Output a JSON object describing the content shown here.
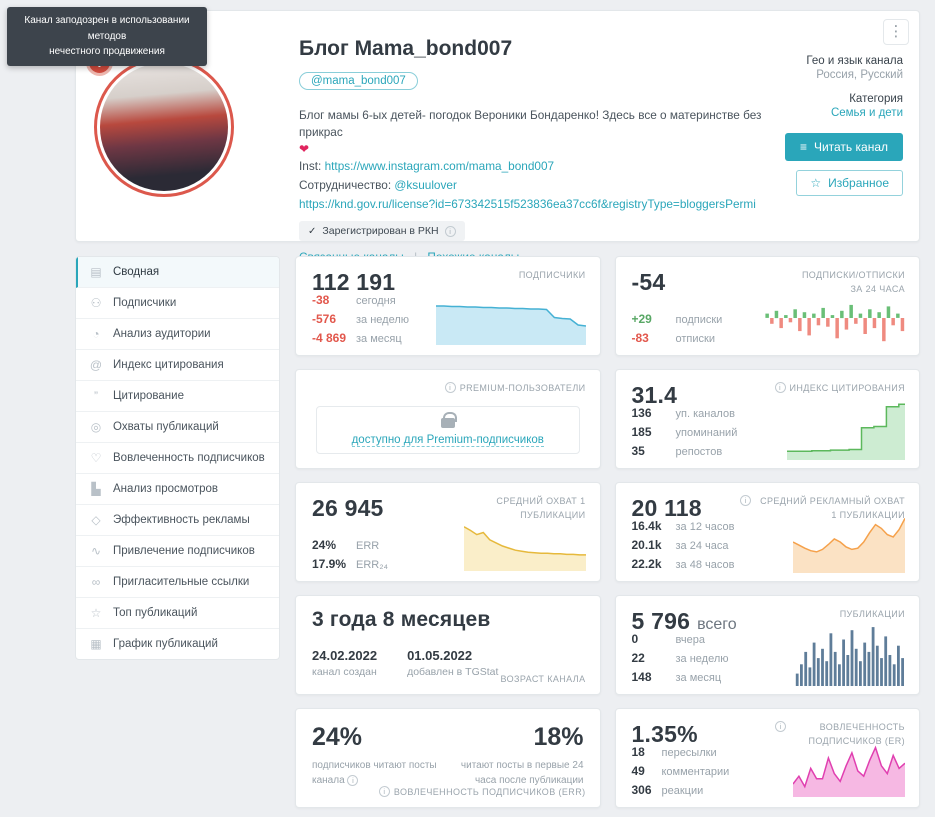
{
  "tooltip": {
    "line1": "Канал заподозрен в использовании методов",
    "line2": "нечестного продвижения"
  },
  "icons": {
    "menu": "⋮",
    "check": "✓",
    "info": "i",
    "star": "☆",
    "read": "≡",
    "warning": "!"
  },
  "header": {
    "title": "Блог Mama_bond007",
    "username": "@mama_bond007",
    "description": "Блог мамы 6-ых детей- погодок Вероники Бондаренко! Здесь все о материнстве без прикрас",
    "heart": "❤",
    "inst_label": "Inst:",
    "inst_url": "https://www.instagram.com/mama_bond007",
    "collab_label": "Сотрудничество:",
    "collab_handle": "@ksuulover",
    "license_url": "https://knd.gov.ru/license?id=673342515f523836ea37cc6f&registryType=bloggersPermi",
    "rkn_label": "Зарегистрирован в РКН",
    "related_link": "Связанные каналы",
    "links_divider": "|",
    "similar_link": "Похожие каналы",
    "geo_label": "Гео и язык канала",
    "geo_value": "Россия, Русский",
    "category_label": "Категория",
    "category_value": "Семья и дети",
    "read_button": "Читать канал",
    "favorite_button": "Избранное"
  },
  "sidebar": {
    "items": [
      {
        "icon": "▤",
        "label": "Сводная",
        "active": true
      },
      {
        "icon": "⚇",
        "label": "Подписчики"
      },
      {
        "icon": "◔",
        "label": "Анализ аудитории"
      },
      {
        "icon": "@",
        "label": "Индекс цитирования"
      },
      {
        "icon": "”",
        "label": "Цитирование"
      },
      {
        "icon": "◎",
        "label": "Охваты публикаций"
      },
      {
        "icon": "♡",
        "label": "Вовлеченность подписчиков"
      },
      {
        "icon": "▙",
        "label": "Анализ просмотров"
      },
      {
        "icon": "◇",
        "label": "Эффективность рекламы"
      },
      {
        "icon": "∿",
        "label": "Привлечение подписчиков"
      },
      {
        "icon": "∞",
        "label": "Пригласительные ссылки"
      },
      {
        "icon": "☆",
        "label": "Топ публикаций"
      },
      {
        "icon": "▦",
        "label": "График публикаций"
      }
    ]
  },
  "cards": {
    "subscribers": {
      "value": "112 191",
      "label": "ПОДПИСЧИКИ",
      "rows": [
        {
          "v": "-38",
          "l": "сегодня"
        },
        {
          "v": "-576",
          "l": "за неделю"
        },
        {
          "v": "-4 869",
          "l": "за месяц"
        }
      ]
    },
    "subs24": {
      "value": "-54",
      "label": "ПОДПИСКИ/ОТПИСКИ ЗА 24 ЧАСА",
      "rows": [
        {
          "v": "+29",
          "l": "подписки"
        },
        {
          "v": "-83",
          "l": "отписки"
        }
      ]
    },
    "premium": {
      "label": "PREMIUM-ПОЛЬЗОВАТЕЛИ",
      "link": "доступно для Premium-подписчиков"
    },
    "citation": {
      "value": "31.4",
      "label": "ИНДЕКС ЦИТИРОВАНИЯ",
      "rows": [
        {
          "v": "136",
          "l": "уп. каналов"
        },
        {
          "v": "185",
          "l": "упоминаний"
        },
        {
          "v": "35",
          "l": "репостов"
        }
      ]
    },
    "reach": {
      "value": "26 945",
      "label": "СРЕДНИЙ ОХВАТ 1 ПУБЛИКАЦИИ",
      "rows": [
        {
          "v": "24%",
          "l": "ERR"
        },
        {
          "v": "17.9%",
          "l": "ERR₂₄"
        }
      ]
    },
    "adreach": {
      "value": "20 118",
      "label": "СРЕДНИЙ РЕКЛАМНЫЙ ОХВАТ 1 ПУБЛИКАЦИИ",
      "rows": [
        {
          "v": "16.4k",
          "l": "за 12 часов"
        },
        {
          "v": "20.1k",
          "l": "за 24 часа"
        },
        {
          "v": "22.2k",
          "l": "за 48 часов"
        }
      ]
    },
    "age": {
      "value": "3 года 8 месяцев",
      "created_value": "24.02.2022",
      "created_label": "канал создан",
      "added_value": "01.05.2022",
      "added_label": "добавлен в TGStat",
      "label": "ВОЗРАСТ КАНАЛА"
    },
    "publications": {
      "value": "5 796",
      "suffix": "всего",
      "label": "ПУБЛИКАЦИИ",
      "rows": [
        {
          "v": "0",
          "l": "вчера"
        },
        {
          "v": "22",
          "l": "за неделю"
        },
        {
          "v": "148",
          "l": "за месяц"
        }
      ]
    },
    "err": {
      "left_value": "24%",
      "left_label": "подписчиков читают посты канала",
      "right_value": "18%",
      "right_label": "читают посты в первые 24 часа после публикации",
      "label": "ВОВЛЕЧЕННОСТЬ ПОДПИСЧИКОВ (ERR)"
    },
    "er": {
      "value": "1.35%",
      "label": "ВОВЛЕЧЕННОСТЬ ПОДПИСЧИКОВ (ER)",
      "rows": [
        {
          "v": "18",
          "l": "пересылки"
        },
        {
          "v": "49",
          "l": "комментарии"
        },
        {
          "v": "306",
          "l": "реакции"
        }
      ]
    }
  },
  "charts": {
    "subscribers": {
      "type": "area",
      "color": "#45b1d4",
      "fill": "#c9e9f5",
      "points": [
        78,
        78,
        77,
        77,
        76,
        76,
        75,
        75,
        74,
        74,
        73,
        73,
        72,
        72,
        71,
        55,
        53,
        52,
        40,
        38
      ]
    },
    "subs24": {
      "type": "posneg",
      "posColor": "#6abf77",
      "negColor": "#ef8a80",
      "values": [
        15,
        -20,
        25,
        -35,
        10,
        -15,
        30,
        -45,
        20,
        -60,
        15,
        -25,
        35,
        -30,
        10,
        -70,
        25,
        -40,
        45,
        -20,
        15,
        -55,
        30,
        -35,
        20,
        -80,
        40,
        -25,
        15,
        -45
      ]
    },
    "citation": {
      "type": "step",
      "color": "#5cb85c",
      "fill": "#cdecd2",
      "points": [
        14,
        14,
        14,
        14,
        15,
        15,
        15,
        16,
        16,
        16,
        17,
        17,
        52,
        52,
        54,
        54,
        86,
        86,
        90,
        90
      ]
    },
    "reach": {
      "type": "area",
      "color": "#e6b93c",
      "fill": "#faeec9",
      "points": [
        85,
        78,
        70,
        74,
        60,
        54,
        48,
        44,
        40,
        38,
        36,
        35,
        34,
        34,
        33,
        33,
        32,
        32,
        31,
        31
      ]
    },
    "adreach": {
      "type": "area",
      "color": "#f5a14b",
      "fill": "#fbe2c4",
      "points": [
        50,
        45,
        40,
        36,
        34,
        38,
        46,
        55,
        50,
        42,
        38,
        40,
        50,
        65,
        78,
        72,
        62,
        58,
        70,
        88
      ]
    },
    "publications": {
      "type": "bars",
      "color": "#5f7d99",
      "values": [
        0,
        0,
        20,
        35,
        55,
        30,
        70,
        45,
        60,
        40,
        85,
        55,
        35,
        75,
        50,
        90,
        60,
        40,
        70,
        55,
        95,
        65,
        45,
        80,
        50,
        35,
        65,
        45
      ]
    },
    "er": {
      "type": "area",
      "color": "#e03fb0",
      "fill": "#f6b8e3",
      "points": [
        25,
        40,
        20,
        55,
        35,
        35,
        75,
        45,
        30,
        60,
        85,
        50,
        40,
        70,
        95,
        60,
        45,
        80,
        55,
        65
      ]
    }
  }
}
